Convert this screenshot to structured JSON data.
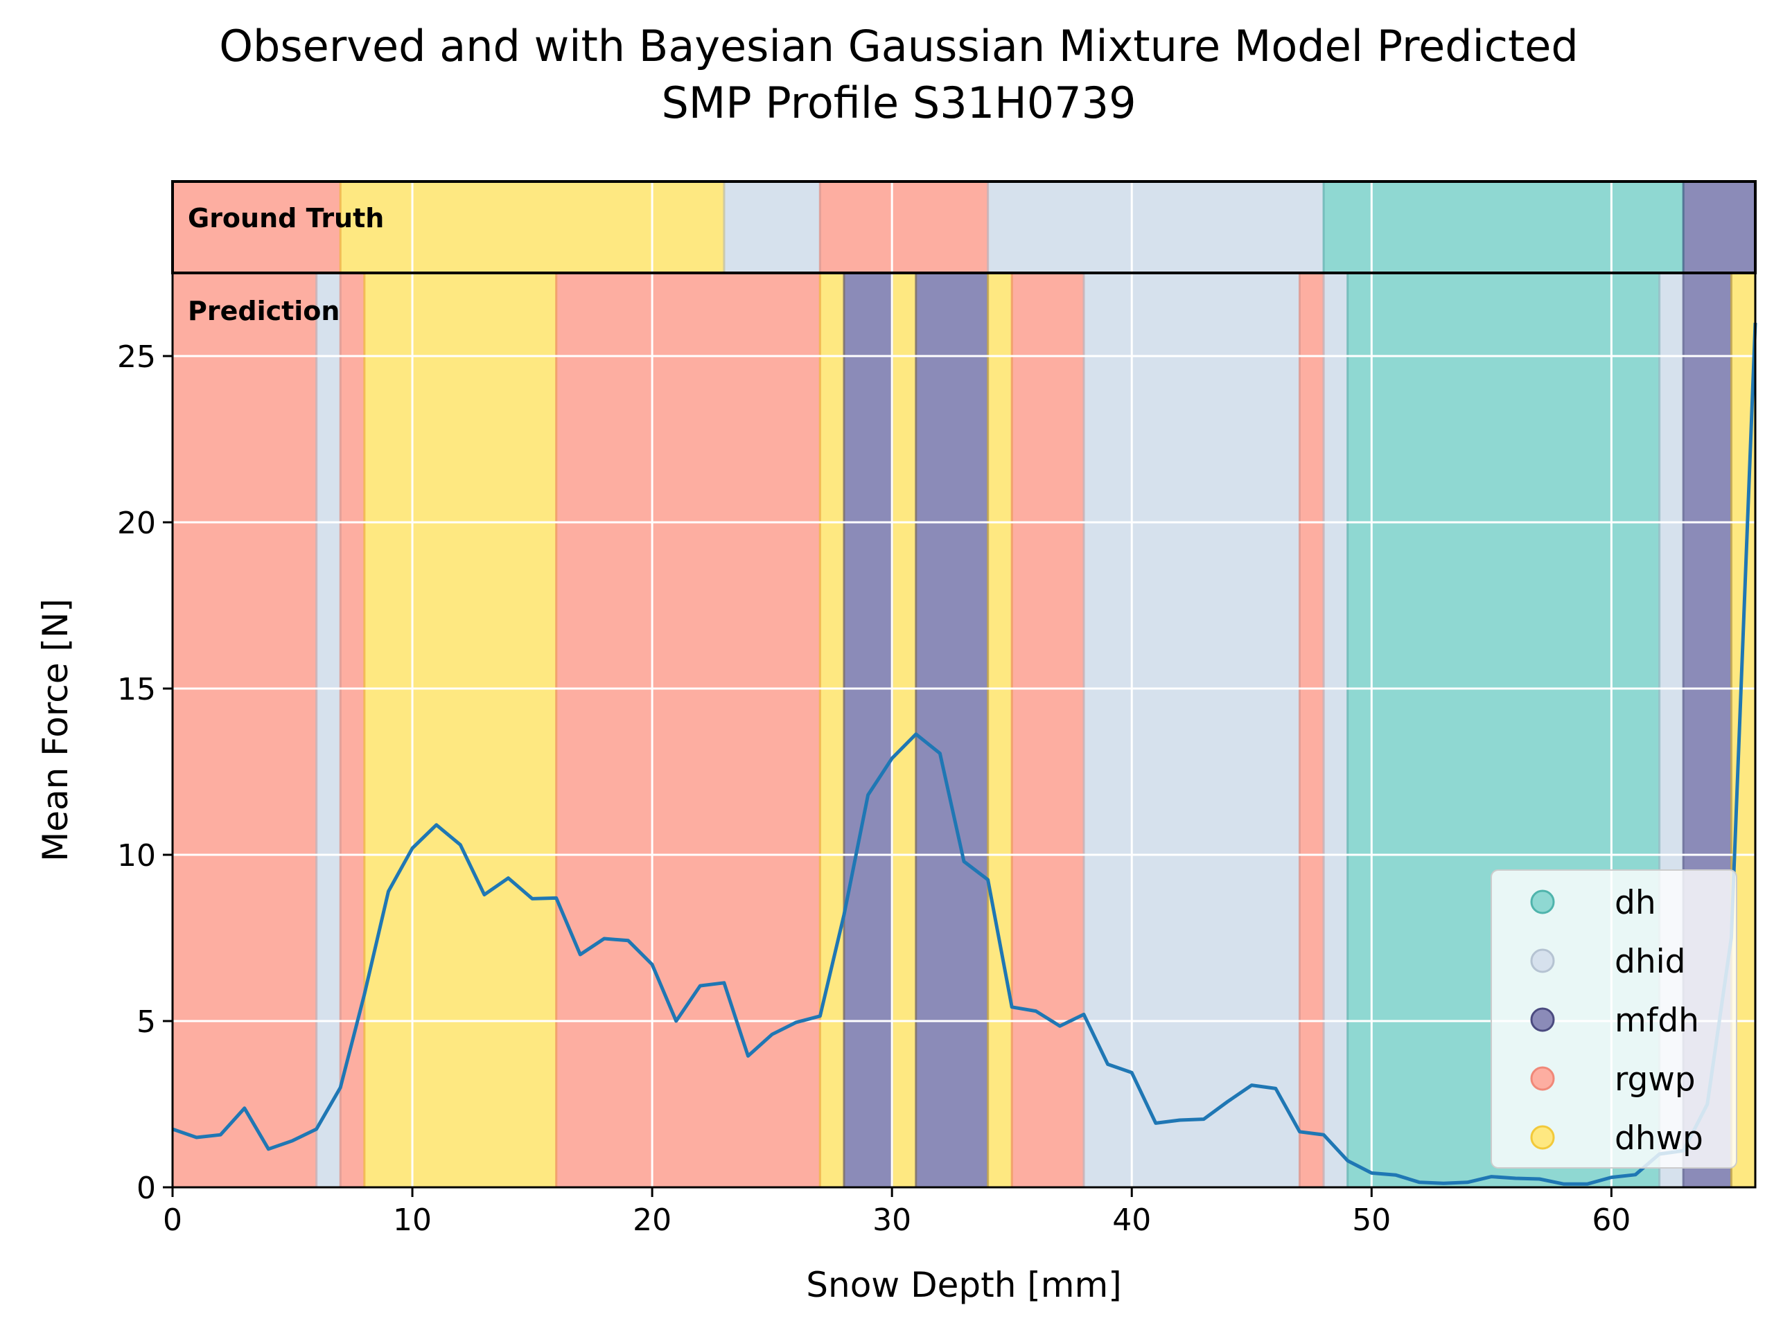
{
  "chart_data": {
    "type": "line",
    "title": "Observed and with Bayesian Gaussian Mixture Model Predicted\nSMP Profile S31H0739",
    "title_lines": [
      "Observed and with Bayesian Gaussian Mixture Model Predicted",
      "SMP Profile S31H0739"
    ],
    "xlabel": "Snow Depth [mm]",
    "ylabel": "Mean Force [N]",
    "xlim": [
      0,
      66
    ],
    "ylim": [
      0,
      27.5
    ],
    "xticks": [
      0,
      10,
      20,
      30,
      40,
      50,
      60
    ],
    "yticks": [
      0,
      5,
      10,
      15,
      20,
      25
    ],
    "grid": true,
    "legend_position": "lower-right",
    "panel_labels": {
      "ground_truth": "Ground Truth",
      "prediction": "Prediction"
    },
    "classes": [
      {
        "name": "dh",
        "color": "#8fd8d2"
      },
      {
        "name": "dhid",
        "color": "#d6e1ed"
      },
      {
        "name": "mfdh",
        "color": "#8b8bb8"
      },
      {
        "name": "rgwp",
        "color": "#fdaea1"
      },
      {
        "name": "dhwp",
        "color": "#fee881"
      }
    ],
    "class_edge_colors": {
      "dh": "#4fb4ac",
      "dhid": "#b5c3d2",
      "mfdh": "#4b4b80",
      "rgwp": "#f08878",
      "dhwp": "#f2c93a"
    },
    "line_color": "#1f77b4",
    "ground_truth_segments": [
      {
        "start": 0,
        "end": 7,
        "class": "rgwp"
      },
      {
        "start": 7,
        "end": 23,
        "class": "dhwp"
      },
      {
        "start": 23,
        "end": 27,
        "class": "dhid"
      },
      {
        "start": 27,
        "end": 34,
        "class": "rgwp"
      },
      {
        "start": 34,
        "end": 48,
        "class": "dhid"
      },
      {
        "start": 48,
        "end": 63,
        "class": "dh"
      },
      {
        "start": 63,
        "end": 66,
        "class": "mfdh"
      }
    ],
    "prediction_segments": [
      {
        "start": 0,
        "end": 6,
        "class": "rgwp"
      },
      {
        "start": 6,
        "end": 7,
        "class": "dhid"
      },
      {
        "start": 7,
        "end": 8,
        "class": "rgwp"
      },
      {
        "start": 8,
        "end": 16,
        "class": "dhwp"
      },
      {
        "start": 16,
        "end": 27,
        "class": "rgwp"
      },
      {
        "start": 27,
        "end": 28,
        "class": "dhwp"
      },
      {
        "start": 28,
        "end": 30,
        "class": "mfdh"
      },
      {
        "start": 30,
        "end": 31,
        "class": "dhwp"
      },
      {
        "start": 31,
        "end": 34,
        "class": "mfdh"
      },
      {
        "start": 34,
        "end": 35,
        "class": "dhwp"
      },
      {
        "start": 35,
        "end": 38,
        "class": "rgwp"
      },
      {
        "start": 38,
        "end": 47,
        "class": "dhid"
      },
      {
        "start": 47,
        "end": 48,
        "class": "rgwp"
      },
      {
        "start": 48,
        "end": 49,
        "class": "dhid"
      },
      {
        "start": 49,
        "end": 62,
        "class": "dh"
      },
      {
        "start": 62,
        "end": 63,
        "class": "dhid"
      },
      {
        "start": 63,
        "end": 65,
        "class": "mfdh"
      },
      {
        "start": 65,
        "end": 66,
        "class": "dhwp"
      }
    ],
    "series": [
      {
        "x": [
          0,
          1,
          2,
          3,
          4,
          5,
          6,
          7,
          8,
          9,
          10,
          11,
          12,
          13,
          14,
          15,
          16,
          17,
          18,
          19,
          20,
          21,
          22,
          23,
          24,
          25,
          26,
          27,
          28,
          29,
          30,
          31,
          32,
          33,
          34,
          35,
          36,
          37,
          38,
          39,
          40,
          41,
          42,
          43,
          44,
          45,
          46,
          47,
          48,
          49,
          50,
          51,
          52,
          53,
          54,
          55,
          56,
          57,
          58,
          59,
          60,
          61,
          62,
          63,
          64,
          65,
          66
        ],
        "values": [
          1.75,
          1.5,
          1.58,
          2.38,
          1.15,
          1.4,
          1.75,
          3.0,
          5.8,
          8.9,
          10.2,
          10.9,
          10.3,
          8.8,
          9.3,
          8.68,
          8.7,
          7.0,
          7.48,
          7.42,
          6.7,
          5.0,
          6.06,
          6.15,
          3.95,
          4.6,
          4.96,
          5.15,
          8.2,
          11.8,
          12.9,
          13.63,
          13.05,
          9.8,
          9.25,
          5.42,
          5.3,
          4.85,
          5.2,
          3.7,
          3.45,
          1.93,
          2.02,
          2.05,
          2.58,
          3.07,
          2.97,
          1.67,
          1.58,
          0.8,
          0.43,
          0.37,
          0.15,
          0.12,
          0.15,
          0.32,
          0.27,
          0.25,
          0.1,
          0.1,
          0.3,
          0.38,
          1.0,
          1.1,
          2.5,
          7.5,
          26.0
        ]
      }
    ]
  }
}
